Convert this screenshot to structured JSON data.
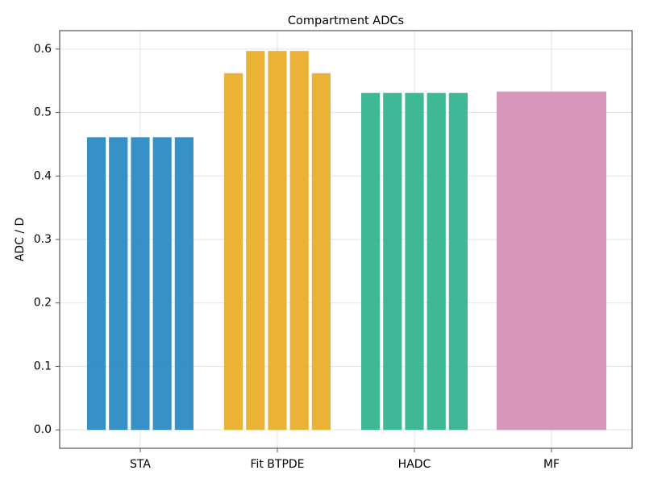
{
  "chart_data": {
    "type": "bar",
    "title": "Compartment ADCs",
    "y_label": "ADC / D",
    "categories": [
      "STA",
      "Fit BTPDE",
      "HADC",
      "MF"
    ],
    "values": [
      [
        0.461,
        0.461,
        0.461,
        0.461,
        0.461
      ],
      [
        0.562,
        0.597,
        0.597,
        0.597,
        0.562
      ],
      [
        0.531,
        0.531,
        0.531,
        0.531,
        0.531
      ],
      [
        0.533
      ]
    ],
    "colors": [
      "#2d8bc3",
      "#e9ae2b",
      "#35b48f",
      "#d591b6"
    ],
    "ylim": [
      -0.029,
      0.629
    ],
    "yticks": [
      {
        "value": 0,
        "label": "0.0"
      },
      0.1,
      0.2,
      0.3,
      0.4,
      0.5,
      0.6
    ],
    "grid": true
  }
}
